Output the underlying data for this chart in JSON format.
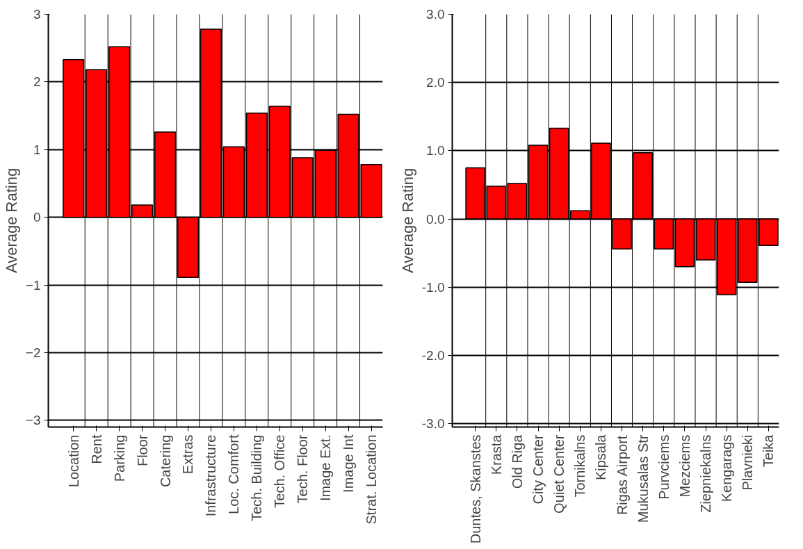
{
  "chart_data": [
    {
      "type": "bar",
      "ylabel": "Average Rating",
      "categories": [
        "Location",
        "Rent",
        "Parking",
        "Floor",
        "Catering",
        "Extras",
        "Infrastructure",
        "Loc. Comfort",
        "Tech. Building",
        "Tech. Office",
        "Tech. Floor",
        "Image Ext.",
        "Image Int",
        "Strat. Location"
      ],
      "values": [
        2.33,
        2.18,
        2.52,
        0.18,
        1.26,
        -0.89,
        2.78,
        1.04,
        1.54,
        1.64,
        0.88,
        0.99,
        1.52,
        0.78
      ],
      "color": "#ff0000",
      "ylim": [
        -3.1,
        3
      ],
      "yticks": [
        -3,
        -2,
        -1,
        0,
        1,
        2,
        3
      ],
      "grid": true
    },
    {
      "type": "bar",
      "ylabel": "Average Rating",
      "categories": [
        "Duntes, Skanstes",
        "Krasta",
        "Old Riga",
        "City Center",
        "Quiet Center",
        "Tornikalns",
        "Kipsala",
        "Rigas Airport",
        "Mukusalas Str",
        "Purvciems",
        "Mezciems",
        "Ziepniekalns",
        "Kengarags",
        "Plavnieki",
        "Teika"
      ],
      "values": [
        0.75,
        0.48,
        0.52,
        1.08,
        1.33,
        0.12,
        1.11,
        -0.44,
        0.97,
        -0.44,
        -0.7,
        -0.6,
        -1.11,
        -0.93,
        -0.39
      ],
      "color": "#ff0000",
      "ylim": [
        -3.05,
        3
      ],
      "yticks": [
        {
          "value": -3,
          "label": "-3.0"
        },
        {
          "value": -2,
          "label": "-2.0"
        },
        {
          "value": -1,
          "label": "-1.0"
        },
        {
          "value": 0,
          "label": "0.0"
        },
        {
          "value": 1,
          "label": "1.0"
        },
        {
          "value": 2,
          "label": "2.0"
        },
        {
          "value": 3,
          "label": "3.0"
        }
      ],
      "grid": true
    }
  ]
}
